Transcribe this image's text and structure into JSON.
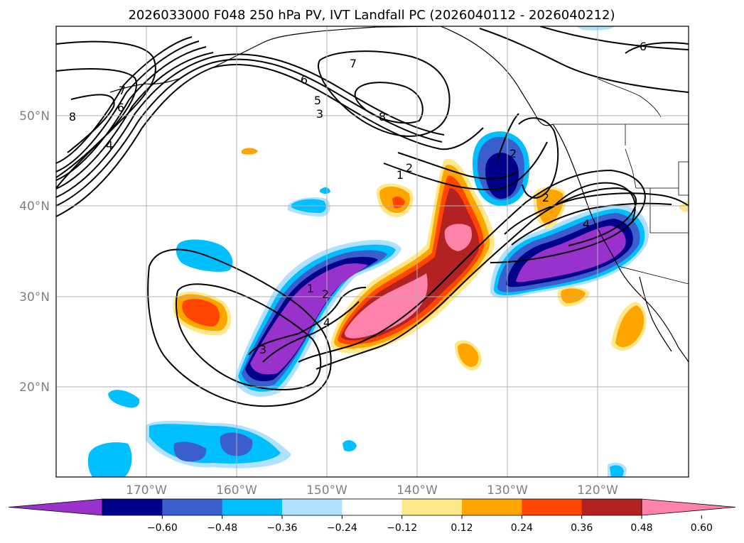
{
  "title": "2026033000 F048 250 hPa PV, IVT Landfall PC (2026040112 - 2026040212)",
  "lat_labels": [
    "50°N",
    "40°N",
    "30°N",
    "20°N"
  ],
  "lon_labels": [
    "170°W",
    "160°W",
    "150°W",
    "140°W",
    "130°W",
    "120°W"
  ],
  "colorbar": {
    "ticks": [
      "−0.60",
      "−0.48",
      "−0.36",
      "−0.24",
      "−0.12",
      "0.12",
      "0.24",
      "0.36",
      "0.48",
      "0.60"
    ],
    "colors": [
      "#9932cc",
      "#00008b",
      "#3a5fcd",
      "#00bfff",
      "#b0e2ff",
      "#ffffff",
      "#ffe88a",
      "#ffa500",
      "#ff4500",
      "#b22222",
      "#ff82ab"
    ]
  },
  "contour_labels": [
    "8",
    "6",
    "7",
    "4",
    "6",
    "5",
    "3",
    "2",
    "1",
    "7",
    "8",
    "2",
    "6",
    "2",
    "4",
    "1",
    "2",
    "4",
    "3"
  ]
}
